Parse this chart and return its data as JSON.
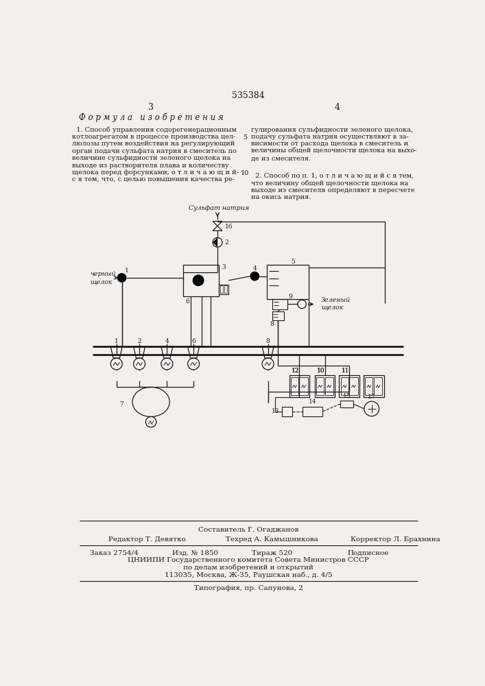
{
  "patent_number": "535384",
  "page_left": "3",
  "page_right": "4",
  "section_title": "Ф о р м у л а   и з о б р е т е н и я",
  "footer_composer": "Составитель Г. Огаджанов",
  "footer_editor": "Редактор Т. Девятко",
  "footer_tech": "Техред А. Камышникова",
  "footer_corrector": "Корректор Л. Брахнина",
  "footer_order": "Заказ 2754/4",
  "footer_izd": "Изд. № 1850",
  "footer_tirazh": "Тираж 520",
  "footer_podpisnoe": "Подписное",
  "footer_org": "ЦНИИПИ Государственного комитета Совета Министров СССР",
  "footer_dept": "по делам изобретений и открытий",
  "footer_addr": "113035, Москва, Ж-35, Раушская наб., д. 4/5",
  "footer_typo": "Типография, пр. Сапунова, 2",
  "bg_color": "#f2f0eb",
  "text_color": "#1a1a1a",
  "line_color": "#1a1a1a"
}
